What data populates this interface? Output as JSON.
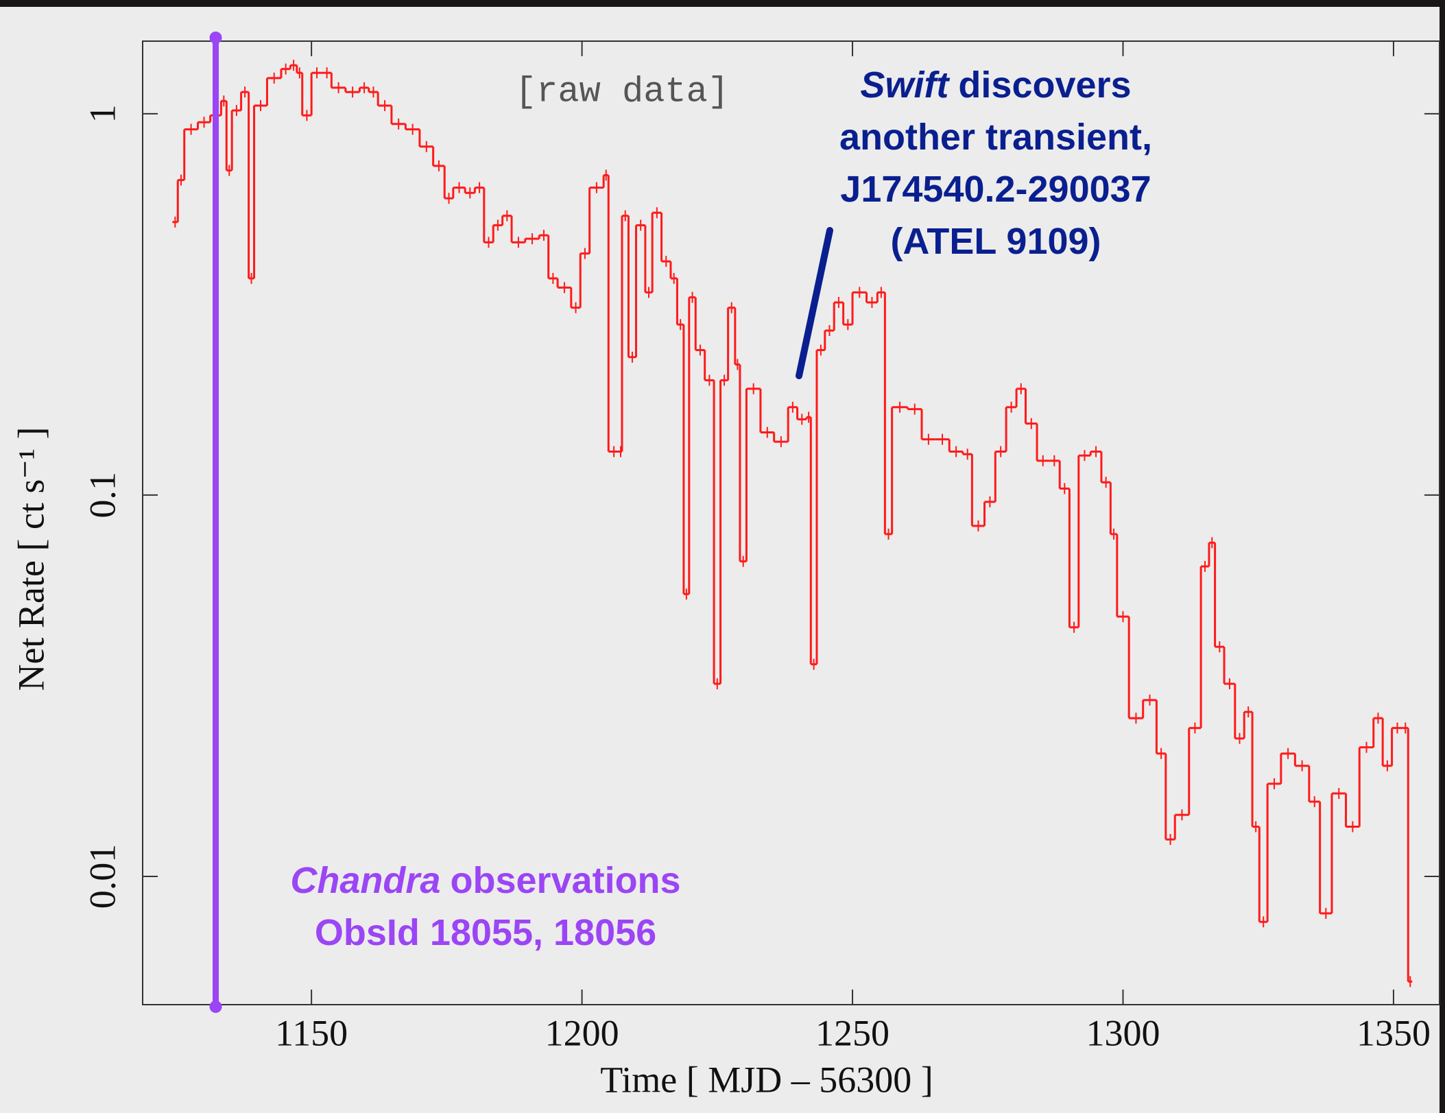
{
  "chart_data": {
    "type": "step",
    "ylabel": "Net Rate [ ct s⁻¹ ]",
    "xlabel": "Time [ MJD – 56300 ]",
    "note": "[raw data]",
    "log_y": true,
    "xlim": [
      1118.8,
      1358.5
    ],
    "ylim": [
      0.00461,
      1.55
    ],
    "xticks": [
      1150,
      1200,
      1250,
      1300,
      1350
    ],
    "yticks": [
      0.01,
      0.1,
      1
    ],
    "series": [
      {
        "color": "#ff1a1a",
        "x": [
          1124.3,
          1125.3,
          1126.5,
          1129,
          1131.3,
          1133.3,
          1134.3,
          1135.3,
          1137,
          1138.4,
          1139.4,
          1141.8,
          1144.4,
          1146.1,
          1147.3,
          1148.3,
          1150,
          1152,
          1153.7,
          1156.3,
          1158.9,
          1160.6,
          1162.3,
          1164.8,
          1167.4,
          1170,
          1172.5,
          1174.6,
          1176.2,
          1178.4,
          1180.2,
          1181.9,
          1183.6,
          1185.3,
          1187,
          1189.5,
          1192.1,
          1193.8,
          1195.5,
          1198,
          1199.7,
          1201.4,
          1204,
          1204.9,
          1206.9,
          1207.4,
          1208.6,
          1210,
          1211.7,
          1213,
          1214.7,
          1216.4,
          1217.6,
          1218.8,
          1219.8,
          1221,
          1222.7,
          1224.4,
          1225.6,
          1227,
          1228.3,
          1229.2,
          1230.4,
          1233,
          1235.5,
          1238.1,
          1239.8,
          1241.5,
          1242.3,
          1243.4,
          1244.9,
          1246.6,
          1248.3,
          1250,
          1252.6,
          1254.6,
          1256,
          1257.3,
          1260.2,
          1262.8,
          1265.3,
          1267.9,
          1270.4,
          1272.1,
          1274.4,
          1276.4,
          1278.4,
          1280.3,
          1282,
          1284.1,
          1286.3,
          1288.3,
          1290.1,
          1291.8,
          1294,
          1296,
          1297.7,
          1298.9,
          1301.1,
          1303.7,
          1306.2,
          1307.9,
          1309.6,
          1312.2,
          1314.4,
          1315.9,
          1317,
          1318.7,
          1320.7,
          1322.4,
          1323.9,
          1325.2,
          1326.7,
          1329.2,
          1331.8,
          1334.4,
          1336.4,
          1338.6,
          1341.2,
          1343.7,
          1346.3,
          1348,
          1349.7,
          1351.7,
          1352.7
        ],
        "values": [
          0.52,
          0.67,
          0.91,
          0.95,
          0.99,
          1.08,
          0.71,
          1.02,
          1.14,
          0.37,
          1.05,
          1.24,
          1.31,
          1.34,
          1.28,
          0.99,
          1.28,
          1.28,
          1.17,
          1.14,
          1.17,
          1.14,
          1.05,
          0.94,
          0.91,
          0.82,
          0.73,
          0.6,
          0.64,
          0.62,
          0.64,
          0.46,
          0.51,
          0.54,
          0.46,
          0.47,
          0.48,
          0.37,
          0.35,
          0.31,
          0.43,
          0.64,
          0.69,
          0.13,
          0.13,
          0.54,
          0.23,
          0.51,
          0.34,
          0.55,
          0.41,
          0.37,
          0.28,
          0.055,
          0.33,
          0.24,
          0.2,
          0.032,
          0.2,
          0.31,
          0.22,
          0.067,
          0.19,
          0.146,
          0.138,
          0.17,
          0.158,
          0.16,
          0.036,
          0.24,
          0.27,
          0.32,
          0.28,
          0.34,
          0.32,
          0.34,
          0.079,
          0.17,
          0.168,
          0.14,
          0.14,
          0.13,
          0.128,
          0.083,
          0.096,
          0.13,
          0.17,
          0.19,
          0.154,
          0.123,
          0.123,
          0.104,
          0.045,
          0.127,
          0.13,
          0.108,
          0.079,
          0.048,
          0.026,
          0.029,
          0.021,
          0.0125,
          0.0145,
          0.0245,
          0.065,
          0.075,
          0.04,
          0.032,
          0.023,
          0.027,
          0.0135,
          0.0076,
          0.0175,
          0.021,
          0.0195,
          0.0157,
          0.008,
          0.0165,
          0.0135,
          0.0218,
          0.026,
          0.0195,
          0.0245,
          0.0245,
          0.0053
        ]
      }
    ],
    "chandra": {
      "x": 1132.3,
      "color": "#9b45f5",
      "emphasis": "Chandra",
      "lines": [
        "observations",
        "ObsId 18055, 18056"
      ]
    },
    "swift": {
      "color": "#0a1f8f",
      "emphasis": "Swift",
      "lines": [
        "discovers",
        "another transient,",
        "J174540.2-290037",
        "(ATEL 9109)"
      ]
    }
  }
}
